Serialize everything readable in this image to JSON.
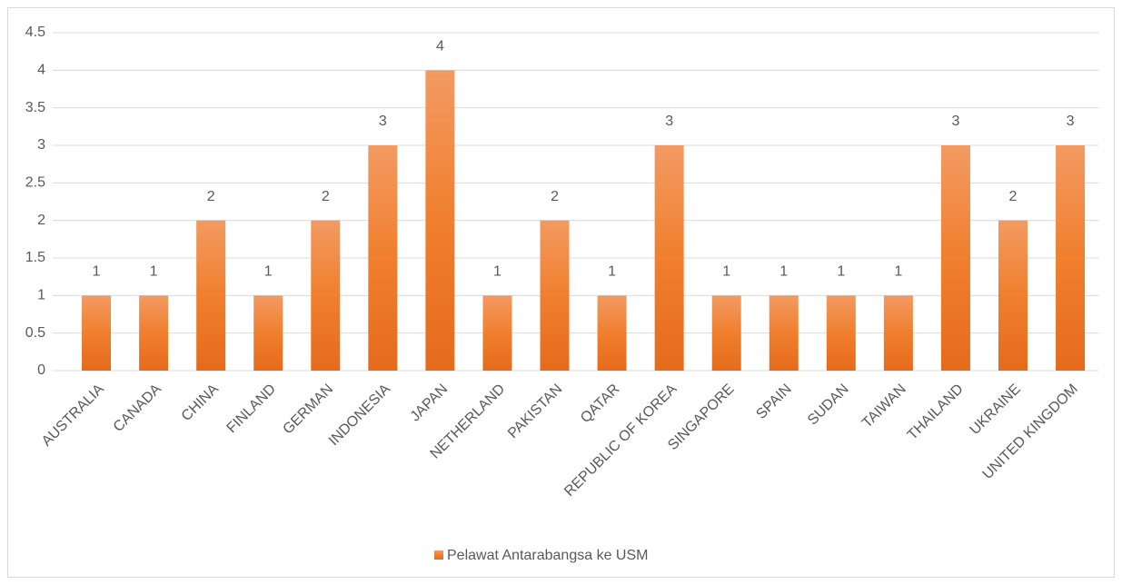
{
  "chart_data": {
    "type": "bar",
    "categories": [
      "AUSTRALIA",
      "CANADA",
      "CHINA",
      "FINLAND",
      "GERMAN",
      "INDONESIA",
      "JAPAN",
      "NETHERLAND",
      "PAKISTAN",
      "QATAR",
      "REPUBLIC OF KOREA",
      "SINGAPORE",
      "SPAIN",
      "SUDAN",
      "TAIWAN",
      "THAILAND",
      "UKRAINE",
      "UNITED KINGDOM"
    ],
    "series": [
      {
        "name": "Pelawat Antarabangsa ke USM",
        "color": "#ED7D31",
        "values": [
          1,
          1,
          2,
          1,
          2,
          3,
          4,
          1,
          2,
          1,
          3,
          1,
          1,
          1,
          1,
          3,
          2,
          3
        ]
      }
    ],
    "ylim": [
      0,
      4.5
    ],
    "yticks": [
      0,
      0.5,
      1,
      1.5,
      2,
      2.5,
      3,
      3.5,
      4,
      4.5
    ],
    "grid": true,
    "legend": "bottom"
  }
}
